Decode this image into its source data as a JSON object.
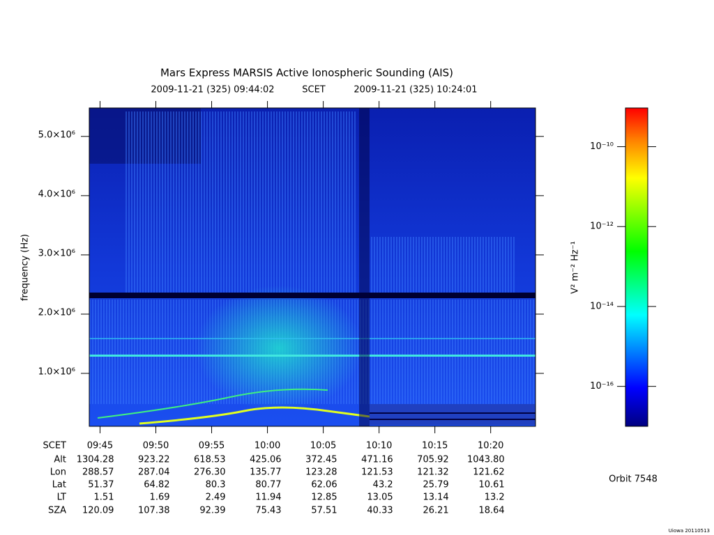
{
  "chart_data": {
    "type": "spectrogram",
    "title": "Mars Express MARSIS Active Ionospheric Sounding (AIS)",
    "start_time": "2009-11-21 (325) 09:44:02",
    "time_frame": "SCET",
    "end_time": "2009-11-21 (325) 10:24:01",
    "ylabel": "frequency (Hz)",
    "xlim": [
      35042,
      37441
    ],
    "xticks": [
      {
        "value": 35100,
        "label": "09:45"
      },
      {
        "value": 35400,
        "label": "09:50"
      },
      {
        "value": 35700,
        "label": "09:55"
      },
      {
        "value": 36000,
        "label": "10:00"
      },
      {
        "value": 36300,
        "label": "10:05"
      },
      {
        "value": 36600,
        "label": "10:10"
      },
      {
        "value": 36900,
        "label": "10:15"
      },
      {
        "value": 37200,
        "label": "10:20"
      }
    ],
    "ylim": [
      106000,
      5480000
    ],
    "yticks": [
      {
        "value": 1000000,
        "label": "1.0×10⁶"
      },
      {
        "value": 2000000,
        "label": "2.0×10⁶"
      },
      {
        "value": 3000000,
        "label": "3.0×10⁶"
      },
      {
        "value": 4000000,
        "label": "4.0×10⁶"
      },
      {
        "value": 5000000,
        "label": "5.0×10⁶"
      }
    ],
    "colorbar": {
      "label": "V² m⁻² Hz⁻¹",
      "scale": "log",
      "lim": [
        1e-17,
        9.3e-10
      ],
      "ticks": [
        {
          "value": 1e-16,
          "label": "10⁻¹⁶"
        },
        {
          "value": 1e-14,
          "label": "10⁻¹⁴"
        },
        {
          "value": 1e-12,
          "label": "10⁻¹²"
        },
        {
          "value": 1e-10,
          "label": "10⁻¹⁰"
        }
      ]
    },
    "ephemeris": {
      "time_label": "SCET",
      "rows": [
        {
          "name": "Alt",
          "values": [
            1304.28,
            923.22,
            618.53,
            425.06,
            372.45,
            471.16,
            705.92,
            1043.8
          ],
          "value_labels": [
            "1304.28",
            "923.22",
            "618.53",
            "425.06",
            "372.45",
            "471.16",
            "705.92",
            "1043.80"
          ]
        },
        {
          "name": "Lon",
          "values": [
            288.57,
            287.04,
            276.3,
            135.77,
            123.28,
            121.53,
            121.32,
            121.62
          ],
          "value_labels": [
            "288.57",
            "287.04",
            "276.30",
            "135.77",
            "123.28",
            "121.53",
            "121.32",
            "121.62"
          ]
        },
        {
          "name": "Lat",
          "values": [
            51.37,
            64.82,
            80.3,
            80.77,
            62.06,
            43.2,
            25.79,
            10.61
          ]
        },
        {
          "name": "LT",
          "values": [
            1.51,
            1.69,
            2.49,
            11.94,
            12.85,
            13.05,
            13.14,
            13.2
          ]
        },
        {
          "name": "SZA",
          "values": [
            120.09,
            107.38,
            92.39,
            75.43,
            57.51,
            40.33,
            26.21,
            18.64
          ]
        }
      ]
    },
    "orbit": "Orbit 7548",
    "credit": "Uiowa 20110513"
  }
}
